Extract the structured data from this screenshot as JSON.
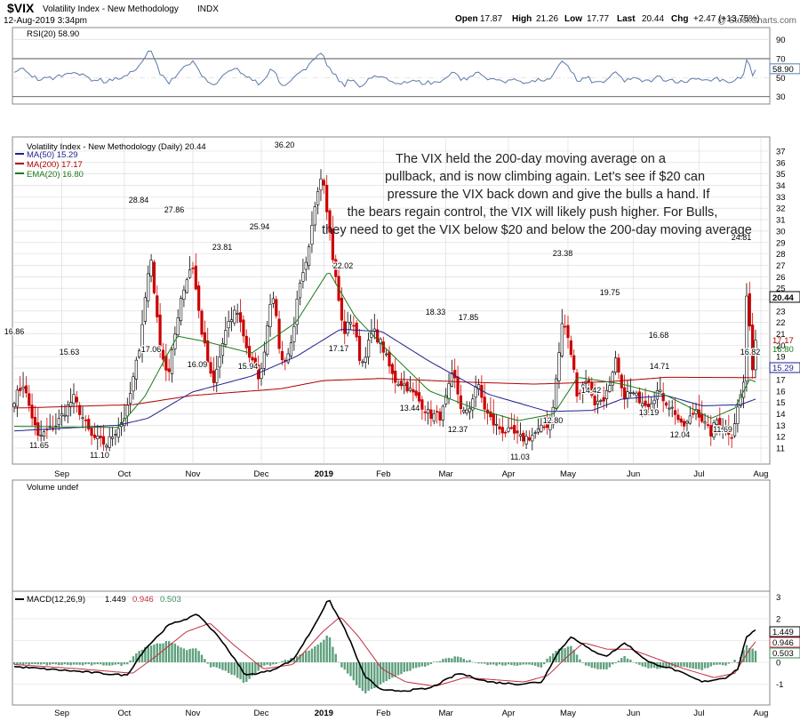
{
  "header": {
    "symbol": "$VIX",
    "name": "Volatility Index - New Methodology",
    "exchange": "INDX",
    "datetime": "12-Aug-2019 3:34pm",
    "watermark": "@ StockCharts.com",
    "ohlc": {
      "open_label": "Open",
      "open": "17.87",
      "high_label": "High",
      "high": "21.26",
      "low_label": "Low",
      "low": "17.77",
      "last_label": "Last",
      "last": "20.44",
      "chg_label": "Chg",
      "chg": "+2.47 (+13.75%)"
    }
  },
  "rsi": {
    "legend": "RSI(20) 58.90",
    "last": "58.90",
    "overbought": 70,
    "oversold": 30,
    "ticks": [
      "90",
      "70",
      "50",
      "30"
    ],
    "tick_values": [
      90,
      70,
      50,
      30
    ]
  },
  "price": {
    "legend_title": "Volatility Index - New Methodology (Daily) 20.44",
    "legend_ma50": "MA(50) 15.29",
    "legend_ma200": "MA(200) 17.17",
    "legend_ema20": "EMA(20) 16.80",
    "last_label": "20.44",
    "ma200_label": "17.17",
    "ema20_label": "16.80",
    "ma50_label": "15.29",
    "ticks": [
      "37",
      "36",
      "35",
      "34",
      "33",
      "32",
      "31",
      "30",
      "29",
      "28",
      "27",
      "26",
      "25",
      "24",
      "23",
      "22",
      "21",
      "20",
      "19",
      "18",
      "17",
      "16",
      "15",
      "14",
      "13",
      "12",
      "11"
    ],
    "annotation": [
      "The VIX held the 200-day moving average on a",
      "pullback, and is now climbing again. Let’s see if $20 can",
      "pressure the VIX back down and give the bulls a hand. If",
      "the bears regain control, the VIX will likely push higher. For Bulls,",
      "they need to get the VIX below $20 and below the 200-day moving average"
    ],
    "peak_labels": [
      "16.86",
      "11.65",
      "15.63",
      "11.10",
      "28.84",
      "17.06",
      "27.86",
      "16.09",
      "23.81",
      "25.94",
      "15.94",
      "36.20",
      "22.02",
      "17.17",
      "18.33",
      "13.44",
      "17.85",
      "12.37",
      "11.03",
      "23.38",
      "12.80",
      "19.75",
      "14.42",
      "16.68",
      "13.19",
      "14.71",
      "12.04",
      "24.81",
      "11.69",
      "16.82"
    ]
  },
  "volume": {
    "legend": "Volume undef"
  },
  "macd": {
    "legend_prefix": "MACD(12,26,9)",
    "macd_value": "1.449",
    "signal_value": "0.946",
    "hist_value": "0.503",
    "ticks": [
      "3",
      "2",
      "1",
      "0",
      "-1"
    ],
    "tick_values": [
      3,
      2,
      1,
      0,
      -1
    ]
  },
  "x_axis": {
    "months": [
      "Sep",
      "Oct",
      "Nov",
      "Dec",
      "2019",
      "Feb",
      "Mar",
      "Apr",
      "May",
      "Jun",
      "Jul",
      "Aug"
    ]
  },
  "colors": {
    "up_candle": "#000000",
    "down_candle": "#cc0000",
    "ma50": "#1f1f8f",
    "ma200": "#b00000",
    "ema20": "#1a7a1a",
    "rsi_line": "#5a7aa8",
    "macd_line": "#000000",
    "signal_line": "#c03040",
    "histogram": "#5fa07e",
    "grid": "#d8d8d8"
  },
  "chart_data": {
    "type": "line",
    "title": "$VIX Volatility Index - New Methodology INDX",
    "xlabel": "",
    "ylabel": "",
    "ylim": [
      10.5,
      37.5
    ],
    "x": [
      "Aug 2018",
      "Sep",
      "Oct",
      "Nov",
      "Dec",
      "2019",
      "Feb",
      "Mar",
      "Apr",
      "May",
      "Jun",
      "Jul",
      "Aug"
    ],
    "series": [
      {
        "name": "Volatility Index - New Methodology (Daily)",
        "values": [
          16.86,
          12.8,
          13.5,
          21.5,
          18.7,
          25.0,
          18.3,
          14.6,
          13.5,
          14.5,
          16.0,
          13.6,
          20.44
        ]
      },
      {
        "name": "MA(50)",
        "values": [
          12.5,
          13.1,
          13.4,
          16.0,
          17.5,
          20.2,
          21.8,
          17.0,
          15.2,
          14.1,
          15.3,
          14.7,
          15.29
        ]
      },
      {
        "name": "MA(200)",
        "values": [
          14.5,
          14.6,
          14.7,
          15.6,
          16.3,
          17.0,
          17.1,
          16.7,
          16.6,
          16.7,
          17.2,
          17.1,
          17.17
        ]
      },
      {
        "name": "EMA(20)",
        "values": [
          12.7,
          12.9,
          14.2,
          19.5,
          19.0,
          22.5,
          19.0,
          15.5,
          13.7,
          14.7,
          16.5,
          14.4,
          16.8
        ]
      }
    ],
    "points": [
      {
        "x": "Aug 2018",
        "y": 16.86
      },
      {
        "x": "Aug 2018",
        "y": 11.65
      },
      {
        "x": "Sep",
        "y": 15.63
      },
      {
        "x": "Sep",
        "y": 11.1
      },
      {
        "x": "Oct",
        "y": 28.84
      },
      {
        "x": "Oct",
        "y": 17.06
      },
      {
        "x": "Oct",
        "y": 27.86
      },
      {
        "x": "Nov",
        "y": 16.09
      },
      {
        "x": "Nov",
        "y": 23.81
      },
      {
        "x": "Dec",
        "y": 25.94
      },
      {
        "x": "Dec",
        "y": 15.94
      },
      {
        "x": "Dec",
        "y": 36.2
      },
      {
        "x": "Jan",
        "y": 22.02
      },
      {
        "x": "Jan",
        "y": 17.17
      },
      {
        "x": "Feb",
        "y": 18.33
      },
      {
        "x": "Mar",
        "y": 13.44
      },
      {
        "x": "Mar",
        "y": 17.85
      },
      {
        "x": "Mar",
        "y": 12.37
      },
      {
        "x": "Apr",
        "y": 11.03
      },
      {
        "x": "May",
        "y": 23.38
      },
      {
        "x": "May",
        "y": 12.8
      },
      {
        "x": "Jun",
        "y": 19.75
      },
      {
        "x": "Jun",
        "y": 14.42
      },
      {
        "x": "Jul",
        "y": 16.68
      },
      {
        "x": "Jul",
        "y": 13.19
      },
      {
        "x": "Jul",
        "y": 14.71
      },
      {
        "x": "Jul",
        "y": 12.04
      },
      {
        "x": "Aug",
        "y": 24.81
      },
      {
        "x": "Jul",
        "y": 11.69
      },
      {
        "x": "Aug",
        "y": 16.82
      }
    ]
  }
}
